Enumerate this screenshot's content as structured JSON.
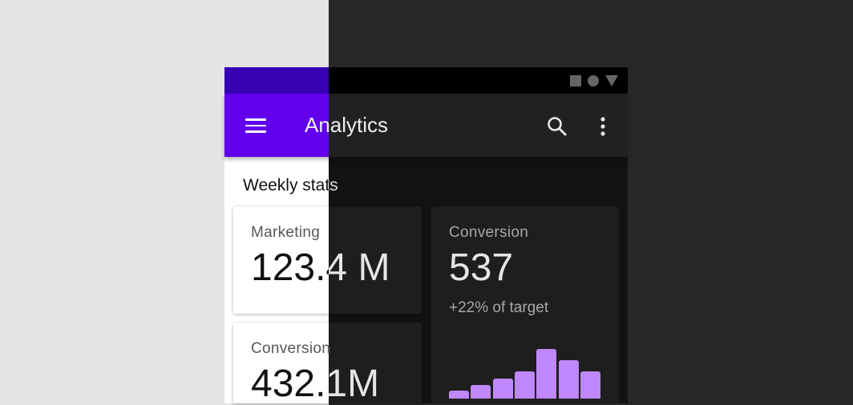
{
  "app_bar": {
    "title": "Analytics",
    "menu_icon": "menu-icon",
    "search_icon": "search-icon",
    "more_icon": "more-vert-icon"
  },
  "status_bar": {
    "icons": [
      "square-icon",
      "circle-icon",
      "triangle-icon"
    ]
  },
  "section_title": "Weekly stats",
  "cards": [
    {
      "label": "Marketing",
      "value": "123.4 M"
    },
    {
      "label": "Conversion",
      "value": "432.1M"
    },
    {
      "label": "Conversion",
      "value": "537",
      "note": "+22% of target"
    }
  ],
  "chart_data": {
    "type": "bar",
    "values": [
      10,
      17,
      25,
      34,
      62,
      48,
      34
    ],
    "color": "#bf88fc"
  },
  "colors": {
    "primary": "#6200ee",
    "primary_dark": "#3700b3",
    "dark_surface": "#121212",
    "accent": "#bb86fc"
  }
}
